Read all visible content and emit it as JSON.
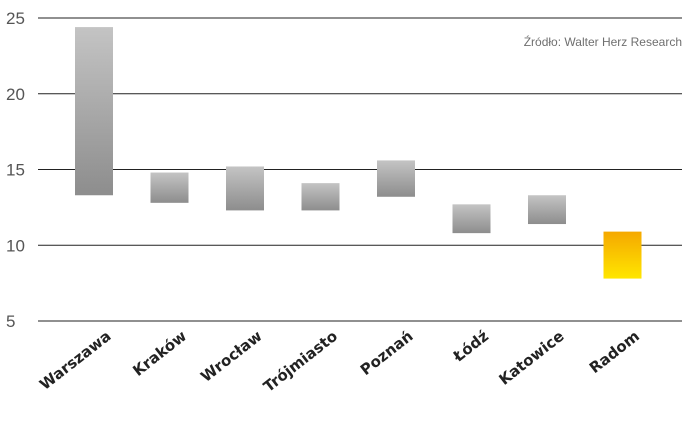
{
  "chart_data": {
    "type": "bar",
    "subtype": "floating-range",
    "categories": [
      "Warszawa",
      "Kraków",
      "Wrocław",
      "Trójmiasto",
      "Poznań",
      "Łódź",
      "Katowice",
      "Radom"
    ],
    "series": [
      {
        "values": [
          [
            13.3,
            24.4
          ],
          [
            12.8,
            14.8
          ],
          [
            12.3,
            15.2
          ],
          [
            12.3,
            14.1
          ],
          [
            13.2,
            15.6
          ],
          [
            10.8,
            12.7
          ],
          [
            11.4,
            13.3
          ],
          [
            7.8,
            10.9
          ]
        ]
      }
    ],
    "title": "",
    "xlabel": "",
    "ylabel": "",
    "ylim": [
      5,
      25
    ],
    "yticks": [
      5,
      10,
      15,
      20,
      25
    ],
    "grid": true,
    "annotation": "Źródło: Walter Herz Research",
    "highlight_category": "Radom",
    "colors": {
      "bar_gradient_top": "#c4c4c4",
      "bar_gradient_bottom": "#8d8d8d",
      "highlight_gradient_top": "#f5a800",
      "highlight_gradient_bottom": "#ffe600",
      "grid": "#222222"
    }
  }
}
